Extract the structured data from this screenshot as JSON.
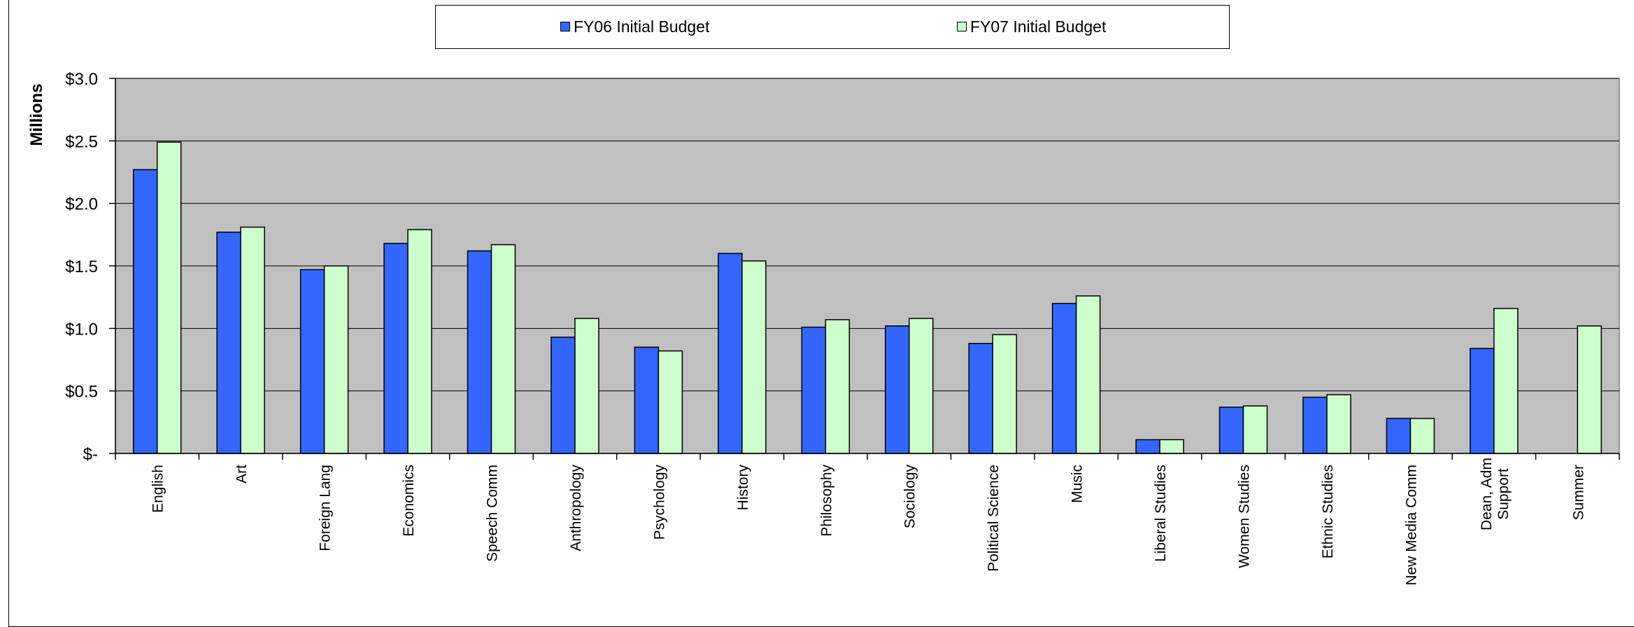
{
  "chart_data": {
    "type": "bar",
    "title": "",
    "xlabel": "",
    "ylabel": "Millions",
    "ylim": [
      0,
      3.0
    ],
    "yticks": [
      {
        "value": 0,
        "label": "$-"
      },
      {
        "value": 0.5,
        "label": "$0.5"
      },
      {
        "value": 1.0,
        "label": "$1.0"
      },
      {
        "value": 1.5,
        "label": "$1.5"
      },
      {
        "value": 2.0,
        "label": "$2.0"
      },
      {
        "value": 2.5,
        "label": "$2.5"
      },
      {
        "value": 3.0,
        "label": "$3.0"
      }
    ],
    "grid": true,
    "legend_position": "top",
    "plot_background": "#c0c0c0",
    "categories": [
      [
        "English"
      ],
      [
        "Art"
      ],
      [
        "Foreign Lang"
      ],
      [
        "Economics"
      ],
      [
        "Speech Comm"
      ],
      [
        "Anthropology"
      ],
      [
        "Psychology"
      ],
      [
        "History"
      ],
      [
        "Philosophy"
      ],
      [
        "Sociology"
      ],
      [
        "Political Science"
      ],
      [
        "Music"
      ],
      [
        "Liberal Studies"
      ],
      [
        "Women Studies"
      ],
      [
        "Ethnic Studies"
      ],
      [
        "New Media Comm"
      ],
      [
        "Dean, Adm",
        "Support"
      ],
      [
        "Summer"
      ]
    ],
    "series": [
      {
        "name": "FY06 Initial Budget",
        "color": "#3366ff",
        "values": [
          2.27,
          1.77,
          1.47,
          1.68,
          1.62,
          0.93,
          0.85,
          1.6,
          1.01,
          1.02,
          0.88,
          1.2,
          0.11,
          0.37,
          0.45,
          0.28,
          0.84,
          null
        ]
      },
      {
        "name": "FY07 Initial Budget",
        "color": "#ccffcc",
        "values": [
          2.49,
          1.81,
          1.5,
          1.79,
          1.67,
          1.08,
          0.82,
          1.54,
          1.07,
          1.08,
          0.95,
          1.26,
          0.11,
          0.38,
          0.47,
          0.28,
          1.16,
          1.02
        ]
      }
    ]
  }
}
